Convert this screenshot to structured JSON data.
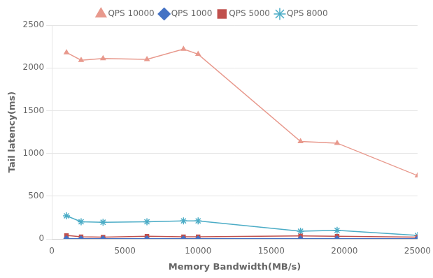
{
  "chart_data": {
    "type": "line",
    "xlabel": "Memory Bandwidth(MB/s)",
    "ylabel": "Tail latency(ms)",
    "xlim": [
      0,
      25000
    ],
    "ylim": [
      0,
      2500
    ],
    "xticks": [
      0,
      5000,
      10000,
      15000,
      20000,
      25000
    ],
    "yticks": [
      0,
      500,
      1000,
      1500,
      2000,
      2500
    ],
    "grid": "y",
    "legend": "top",
    "series": [
      {
        "name": "QPS 10000",
        "color": "#E8998D",
        "marker": "triangle",
        "x": [
          1000,
          2000,
          3500,
          6500,
          9000,
          10000,
          17000,
          19500,
          25000
        ],
        "values": [
          2180,
          2090,
          2110,
          2100,
          2220,
          2160,
          1140,
          1120,
          740
        ]
      },
      {
        "name": "QPS 1000",
        "color": "#4472C4",
        "marker": "diamond",
        "x": [
          1000,
          2000,
          3500,
          6500,
          9000,
          10000,
          17000,
          19500,
          25000
        ],
        "values": [
          5,
          3,
          3,
          3,
          3,
          3,
          3,
          3,
          3
        ]
      },
      {
        "name": "QPS 5000",
        "color": "#C0504D",
        "marker": "square",
        "x": [
          1000,
          2000,
          3500,
          6500,
          9000,
          10000,
          17000,
          19500,
          25000
        ],
        "values": [
          40,
          25,
          20,
          30,
          25,
          25,
          35,
          30,
          20
        ]
      },
      {
        "name": "QPS 8000",
        "color": "#4BACC6",
        "marker": "star",
        "x": [
          1000,
          2000,
          3500,
          6500,
          9000,
          10000,
          17000,
          19500,
          25000
        ],
        "values": [
          270,
          200,
          195,
          200,
          210,
          210,
          90,
          100,
          40
        ]
      }
    ]
  }
}
